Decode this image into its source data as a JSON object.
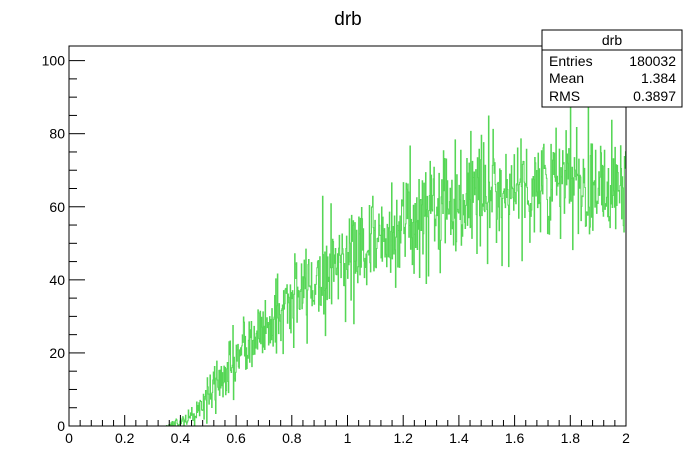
{
  "chart_data": {
    "type": "histogram",
    "title": "drb",
    "xlabel": "",
    "ylabel": "",
    "xlim": [
      0,
      2
    ],
    "ylim": [
      0,
      104
    ],
    "x_ticks": [
      "0",
      "0.2",
      "0.4",
      "0.6",
      "0.8",
      "1",
      "1.2",
      "1.4",
      "1.6",
      "1.8",
      "2"
    ],
    "y_ticks": [
      "0",
      "20",
      "40",
      "60",
      "80",
      "100"
    ],
    "grid": false,
    "legend": "none",
    "series_color": "#55d655",
    "bin_count": 1000,
    "trend": {
      "x": [
        0.0,
        0.35,
        0.4,
        0.45,
        0.5,
        0.6,
        0.7,
        0.8,
        0.9,
        1.0,
        1.1,
        1.2,
        1.3,
        1.4,
        1.5,
        1.6,
        1.7,
        1.8,
        1.9,
        2.0
      ],
      "y": [
        0,
        0,
        1,
        3,
        8,
        18,
        27,
        34,
        41,
        47,
        51,
        55,
        59,
        62,
        64,
        65,
        66,
        66,
        67,
        68
      ]
    },
    "stats_box": {
      "title": "drb",
      "rows": [
        {
          "label": "Entries",
          "value": "180032"
        },
        {
          "label": "Mean",
          "value": "1.384"
        },
        {
          "label": "RMS",
          "value": "0.3897"
        }
      ]
    }
  }
}
